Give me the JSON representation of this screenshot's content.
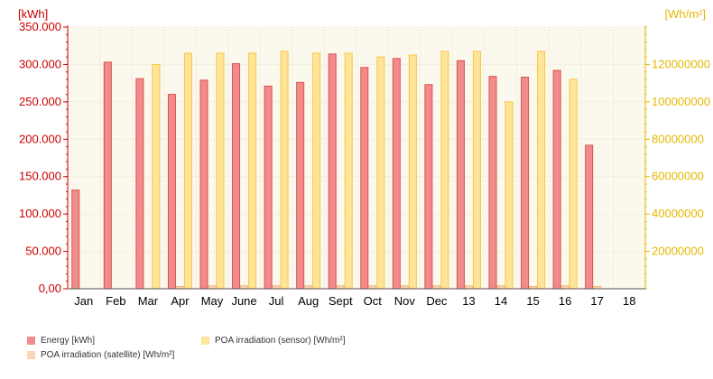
{
  "chart_data": {
    "type": "bar",
    "left_axis_unit": "[kWh]",
    "right_axis_unit": "[Wh/m²]",
    "categories": [
      "Jan",
      "Feb",
      "Mar",
      "Apr",
      "May",
      "June",
      "Jul",
      "Aug",
      "Sept",
      "Oct",
      "Nov",
      "Dec",
      "13",
      "14",
      "15",
      "16",
      "17",
      "18"
    ],
    "left_ylim": [
      0,
      350000
    ],
    "left_ticks": [
      "0,00",
      "50.000",
      "100.000",
      "150.000",
      "200.000",
      "250.000",
      "300.000",
      "350.000"
    ],
    "right_ylim": [
      0,
      140000000
    ],
    "right_ticks": [
      "20000000",
      "40000000",
      "60000000",
      "80000000",
      "100000000",
      "120000000"
    ],
    "grid": true,
    "legend_placement": "bottom-left",
    "series": [
      {
        "name": "Energy [kWh]",
        "axis": "left",
        "color": "#f28b8b",
        "stroke": "#d9534f",
        "values": [
          132000,
          303000,
          281000,
          260000,
          279000,
          301000,
          271000,
          276000,
          314000,
          296000,
          308000,
          273000,
          305000,
          284000,
          283000,
          292000,
          192000,
          null
        ]
      },
      {
        "name": "POA irradiation (satellite) [Wh/m²]",
        "axis": "right",
        "color": "#fdd5b1",
        "stroke": "#f0b880",
        "values": [
          null,
          null,
          null,
          1200000,
          1600000,
          1600000,
          1600000,
          1600000,
          1600000,
          1600000,
          1600000,
          1600000,
          1600000,
          1600000,
          1200000,
          1600000,
          1200000,
          null
        ]
      },
      {
        "name": "POA irradiation (sensor) [Wh/m²]",
        "axis": "right",
        "color": "#ffe49a",
        "stroke": "#f5c842",
        "values": [
          null,
          null,
          120000000,
          126000000,
          126000000,
          126000000,
          127000000,
          126000000,
          126000000,
          124000000,
          125000000,
          127000000,
          127000000,
          100000000,
          127000000,
          112000000,
          null,
          null
        ]
      }
    ]
  },
  "colors": {
    "left_axis": "#cc0000",
    "right_axis": "#e6b800",
    "plot_bg": "#fbf8ee",
    "grid": "#e6e0c8",
    "category_label": "#000000"
  }
}
